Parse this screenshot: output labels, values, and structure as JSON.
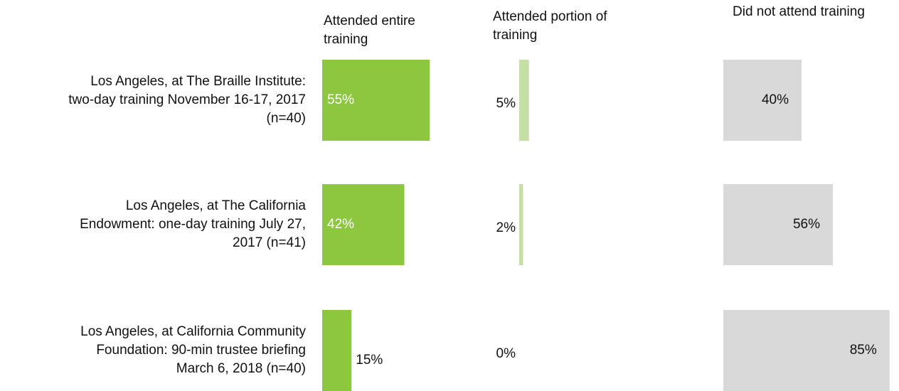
{
  "chart_data": {
    "type": "bar",
    "orientation": "horizontal",
    "categories": [
      "Los Angeles, at The Braille Institute:\ntwo-day training November 16-17, 2017\n(n=40)",
      "Los Angeles, at The California\nEndowment: one-day training July 27,\n2017 (n=41)",
      "Los Angeles, at California Community\nFoundation: 90-min trustee briefing\nMarch 6, 2018  (n=40)"
    ],
    "series": [
      {
        "name": "Attended entire\ntraining",
        "color": "#8dc63f",
        "values": [
          55,
          42,
          15
        ],
        "value_labels": [
          "55%",
          "42%",
          "15%"
        ]
      },
      {
        "name": "Attended portion of\ntraining",
        "color": "#c5e0a3",
        "values": [
          5,
          2,
          0
        ],
        "value_labels": [
          "5%",
          "2%",
          "0%"
        ]
      },
      {
        "name": "Did not attend training",
        "color": "#d9d9d9",
        "values": [
          40,
          56,
          85
        ],
        "value_labels": [
          "40%",
          "56%",
          "85%"
        ]
      }
    ]
  }
}
